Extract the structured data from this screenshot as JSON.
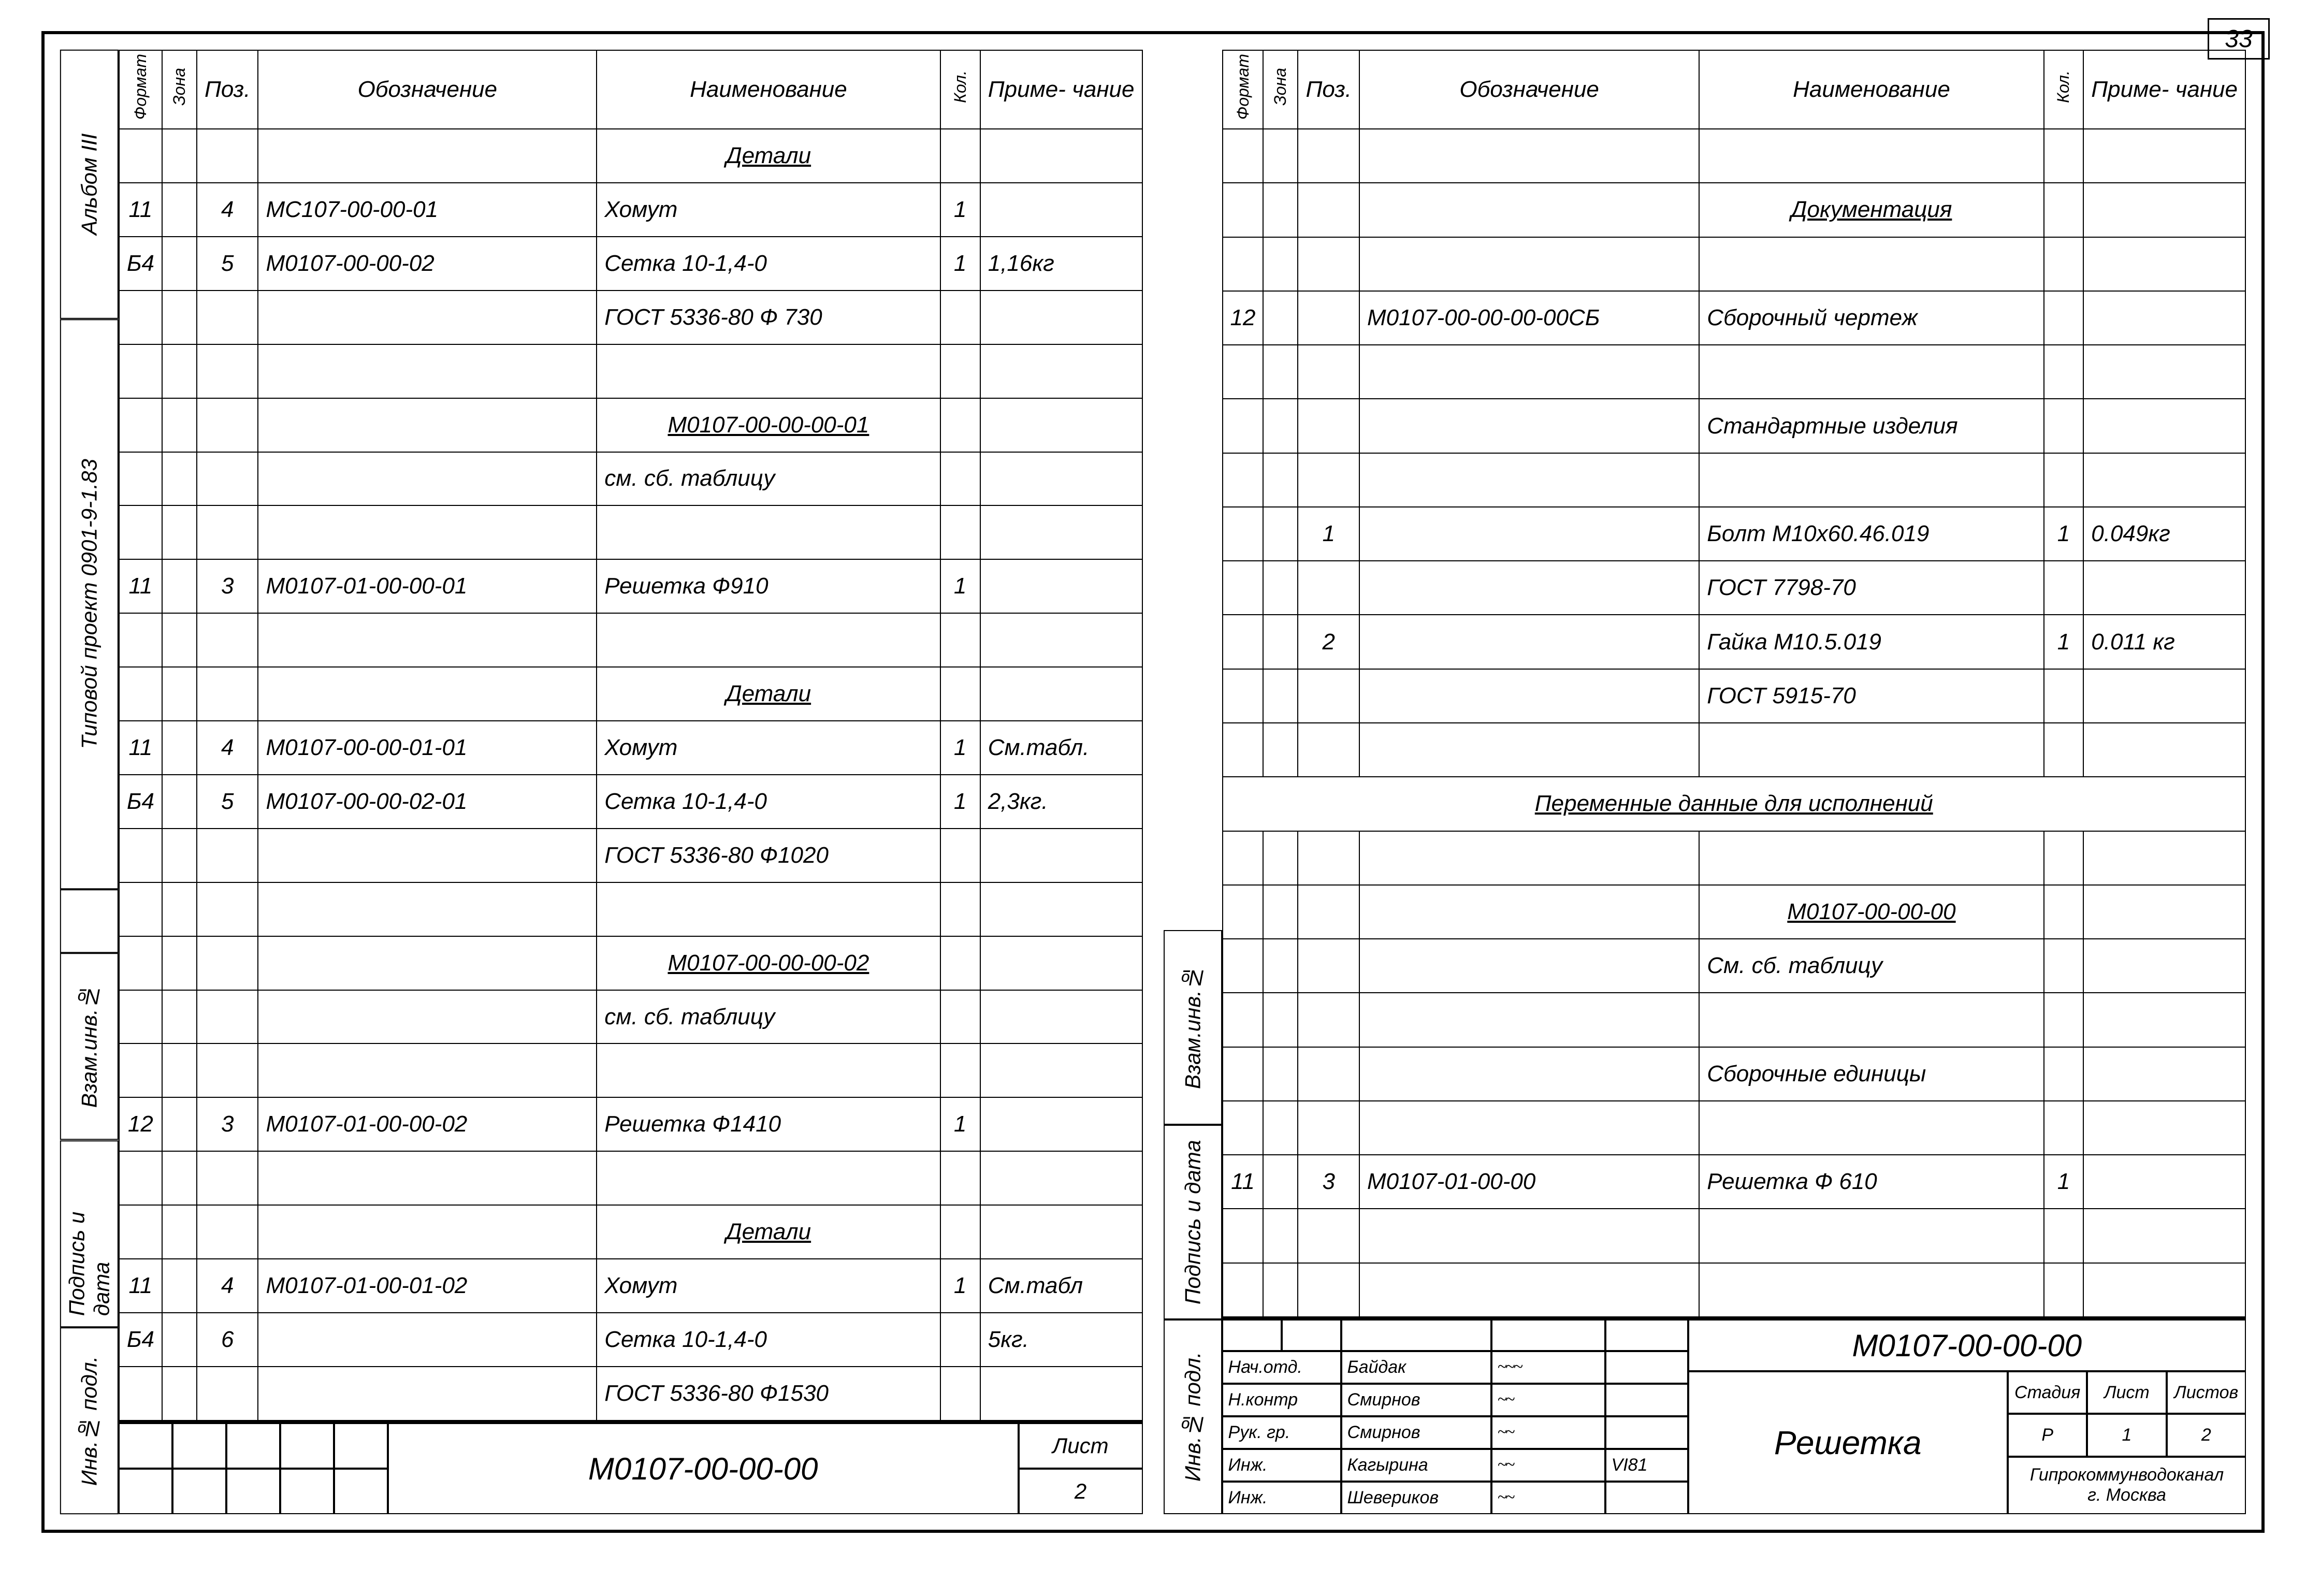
{
  "page_number_corner": "33",
  "headers": {
    "format": "Формат",
    "zone": "Зона",
    "pos": "Поз.",
    "designation": "Обозначение",
    "name": "Наименование",
    "qty": "Кол.",
    "note": "Приме-\nчание"
  },
  "side_left": {
    "project": "Типовой   проект   0901-9-1.83",
    "album": "Альбом  III",
    "tabs": [
      "Инв.№ подл.",
      "Подпись и дата",
      "Взам.инв.№"
    ]
  },
  "side_right": {
    "tabs": [
      "Инв.№ подл.",
      "Подпись и дата",
      "Взам.инв.№"
    ]
  },
  "left_rows": [
    {
      "name": "Детали",
      "section": true
    },
    {
      "fmt": "11",
      "pos": "4",
      "desig": "МС107-00-00-01",
      "name": "Хомут",
      "qty": "1"
    },
    {
      "fmt": "Б4",
      "pos": "5",
      "desig": "М0107-00-00-02",
      "name": "Сетка 10-1,4-0",
      "qty": "1",
      "note": "1,16кг"
    },
    {
      "name": "ГОСТ 5336-80 Ф 730"
    },
    {},
    {
      "name": "М0107-00-00-00-01",
      "ul": true
    },
    {
      "name": "см. сб. таблицу"
    },
    {},
    {
      "fmt": "11",
      "pos": "3",
      "desig": "М0107-01-00-00-01",
      "name": "Решетка Ф910",
      "qty": "1"
    },
    {},
    {
      "name": "Детали",
      "section": true
    },
    {
      "fmt": "11",
      "pos": "4",
      "desig": "М0107-00-00-01-01",
      "name": "Хомут",
      "qty": "1",
      "note": "См.табл."
    },
    {
      "fmt": "Б4",
      "pos": "5",
      "desig": "М0107-00-00-02-01",
      "name": "Сетка 10-1,4-0",
      "qty": "1",
      "note": "2,3кг."
    },
    {
      "name": "ГОСТ 5336-80 Ф1020"
    },
    {},
    {
      "name": "М0107-00-00-00-02",
      "ul": true
    },
    {
      "name": "см. сб. таблицу"
    },
    {},
    {
      "fmt": "12",
      "pos": "3",
      "desig": "М0107-01-00-00-02",
      "name": "Решетка Ф1410",
      "qty": "1"
    },
    {},
    {
      "name": "Детали",
      "section": true
    },
    {
      "fmt": "11",
      "pos": "4",
      "desig": "М0107-01-00-01-02",
      "name": "Хомут",
      "qty": "1",
      "note": "См.табл"
    },
    {
      "fmt": "Б4",
      "pos": "6",
      "name": "Сетка 10-1,4-0",
      "note": "5кг."
    },
    {
      "name": "ГОСТ 5336-80 Ф1530"
    }
  ],
  "left_footer": {
    "code": "М0107-00-00-00",
    "sheet_label": "Лист",
    "sheet_no": "2"
  },
  "right_rows": [
    {},
    {
      "name": "Документация",
      "section": true
    },
    {},
    {
      "fmt": "12",
      "desig": "М0107-00-00-00-00СБ",
      "name": "Сборочный чертеж"
    },
    {},
    {
      "name": "Стандартные изделия"
    },
    {},
    {
      "pos": "1",
      "name": "Болт М10х60.46.019",
      "qty": "1",
      "note": "0.049кг"
    },
    {
      "name": "ГОСТ 7798-70"
    },
    {
      "pos": "2",
      "name": "Гайка М10.5.019",
      "qty": "1",
      "note": "0.011 кг"
    },
    {
      "name": "ГОСТ 5915-70"
    },
    {},
    {
      "merged": "Переменные  данные  для исполнений"
    },
    {},
    {
      "name": "М0107-00-00-00",
      "ul": true
    },
    {
      "name": "См. сб. таблицу"
    },
    {},
    {
      "name": "Сборочные единицы"
    },
    {},
    {
      "fmt": "11",
      "pos": "3",
      "desig": "М0107-01-00-00",
      "name": "Решетка Ф 610",
      "qty": "1"
    },
    {},
    {}
  ],
  "titleblock": {
    "code": "М0107-00-00-00",
    "title": "Решетка",
    "roles": [
      {
        "role": "Нач.отд.",
        "name": "Байдак",
        "sign": "~~~",
        "date": ""
      },
      {
        "role": "Н.контр",
        "name": "Смирнов",
        "sign": "~~",
        "date": ""
      },
      {
        "role": "Рук. гр.",
        "name": "Смирнов",
        "sign": "~~",
        "date": ""
      },
      {
        "role": "Инж.",
        "name": "Кагырина",
        "sign": "~~",
        "date": "VI81"
      },
      {
        "role": "Инж.",
        "name": "Шевериков",
        "sign": "~~",
        "date": ""
      }
    ],
    "stage_hdr": [
      "Стадия",
      "Лист",
      "Листов"
    ],
    "stage_val": [
      "Р",
      "1",
      "2"
    ],
    "org1": "Гипрокоммунводоканал",
    "org2": "г. Москва"
  }
}
